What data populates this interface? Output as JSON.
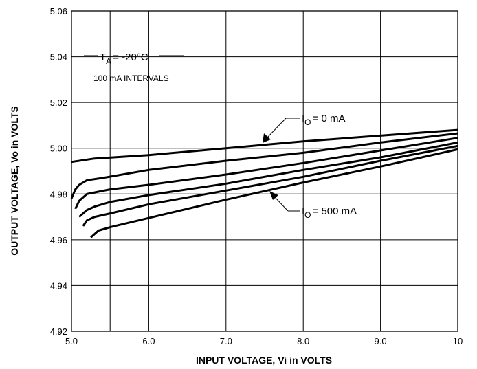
{
  "chart_data": {
    "type": "line",
    "title": "",
    "xlabel": "INPUT VOLTAGE, Vi in VOLTS",
    "ylabel": "OUTPUT VOLTAGE, Vo in VOLTS",
    "xlim": [
      5.0,
      10.0
    ],
    "ylim": [
      4.92,
      5.06
    ],
    "x_ticks": [
      "5.0",
      "6.0",
      "7.0",
      "8.0",
      "9.0",
      "10"
    ],
    "x_tick_values": [
      5.0,
      6.0,
      7.0,
      8.0,
      9.0,
      10.0
    ],
    "y_ticks": [
      "4.92",
      "4.94",
      "4.96",
      "4.98",
      "5.00",
      "5.02",
      "5.04",
      "5.06"
    ],
    "y_tick_values": [
      4.92,
      4.94,
      4.96,
      4.98,
      5.0,
      5.02,
      5.04,
      5.06
    ],
    "x_grid": [
      5.5,
      6.0,
      7.0,
      8.0,
      9.0
    ],
    "y_grid": [
      4.94,
      4.96,
      4.98,
      5.0,
      5.02,
      5.04
    ],
    "grid": true,
    "annotations": {
      "temperature": {
        "symbol": "T",
        "subscript": "A",
        "value": "= -20°C"
      },
      "intervals": "100 mA INTERVALS",
      "io_top": {
        "symbol": "I",
        "subscript": "O",
        "value": "= 0 mA"
      },
      "io_bottom": {
        "symbol": "I",
        "subscript": "O",
        "value": "= 500 mA"
      }
    },
    "series": [
      {
        "x": [
          5.0,
          5.3,
          6.0,
          7.0,
          8.0,
          9.0,
          10.0
        ],
        "y": [
          4.994,
          4.9955,
          4.997,
          5.0,
          5.003,
          5.0055,
          5.008
        ]
      },
      {
        "x": [
          5.0,
          5.05,
          5.1,
          5.2,
          5.4,
          6.0,
          7.0,
          8.0,
          9.0,
          10.0
        ],
        "y": [
          4.978,
          4.982,
          4.984,
          4.986,
          4.987,
          4.9905,
          4.9945,
          4.998,
          5.0025,
          5.0065
        ]
      },
      {
        "x": [
          5.05,
          5.1,
          5.2,
          5.5,
          6.0,
          7.0,
          8.0,
          9.0,
          10.0
        ],
        "y": [
          4.9735,
          4.977,
          4.98,
          4.982,
          4.984,
          4.9885,
          4.9935,
          4.999,
          5.0045
        ]
      },
      {
        "x": [
          5.1,
          5.2,
          5.3,
          5.5,
          6.0,
          7.0,
          8.0,
          9.0,
          10.0
        ],
        "y": [
          4.97,
          4.973,
          4.9745,
          4.9765,
          4.9795,
          4.9845,
          4.9905,
          4.996,
          5.0025
        ]
      },
      {
        "x": [
          5.15,
          5.2,
          5.3,
          5.5,
          6.0,
          7.0,
          8.0,
          9.0,
          10.0
        ],
        "y": [
          4.966,
          4.9685,
          4.97,
          4.9715,
          4.9755,
          4.9815,
          4.9875,
          4.9945,
          5.001
        ]
      },
      {
        "x": [
          5.25,
          5.35,
          5.5,
          6.0,
          7.0,
          8.0,
          9.0,
          10.0
        ],
        "y": [
          4.961,
          4.964,
          4.9655,
          4.9695,
          4.9775,
          4.985,
          4.992,
          4.9995
        ]
      }
    ]
  }
}
